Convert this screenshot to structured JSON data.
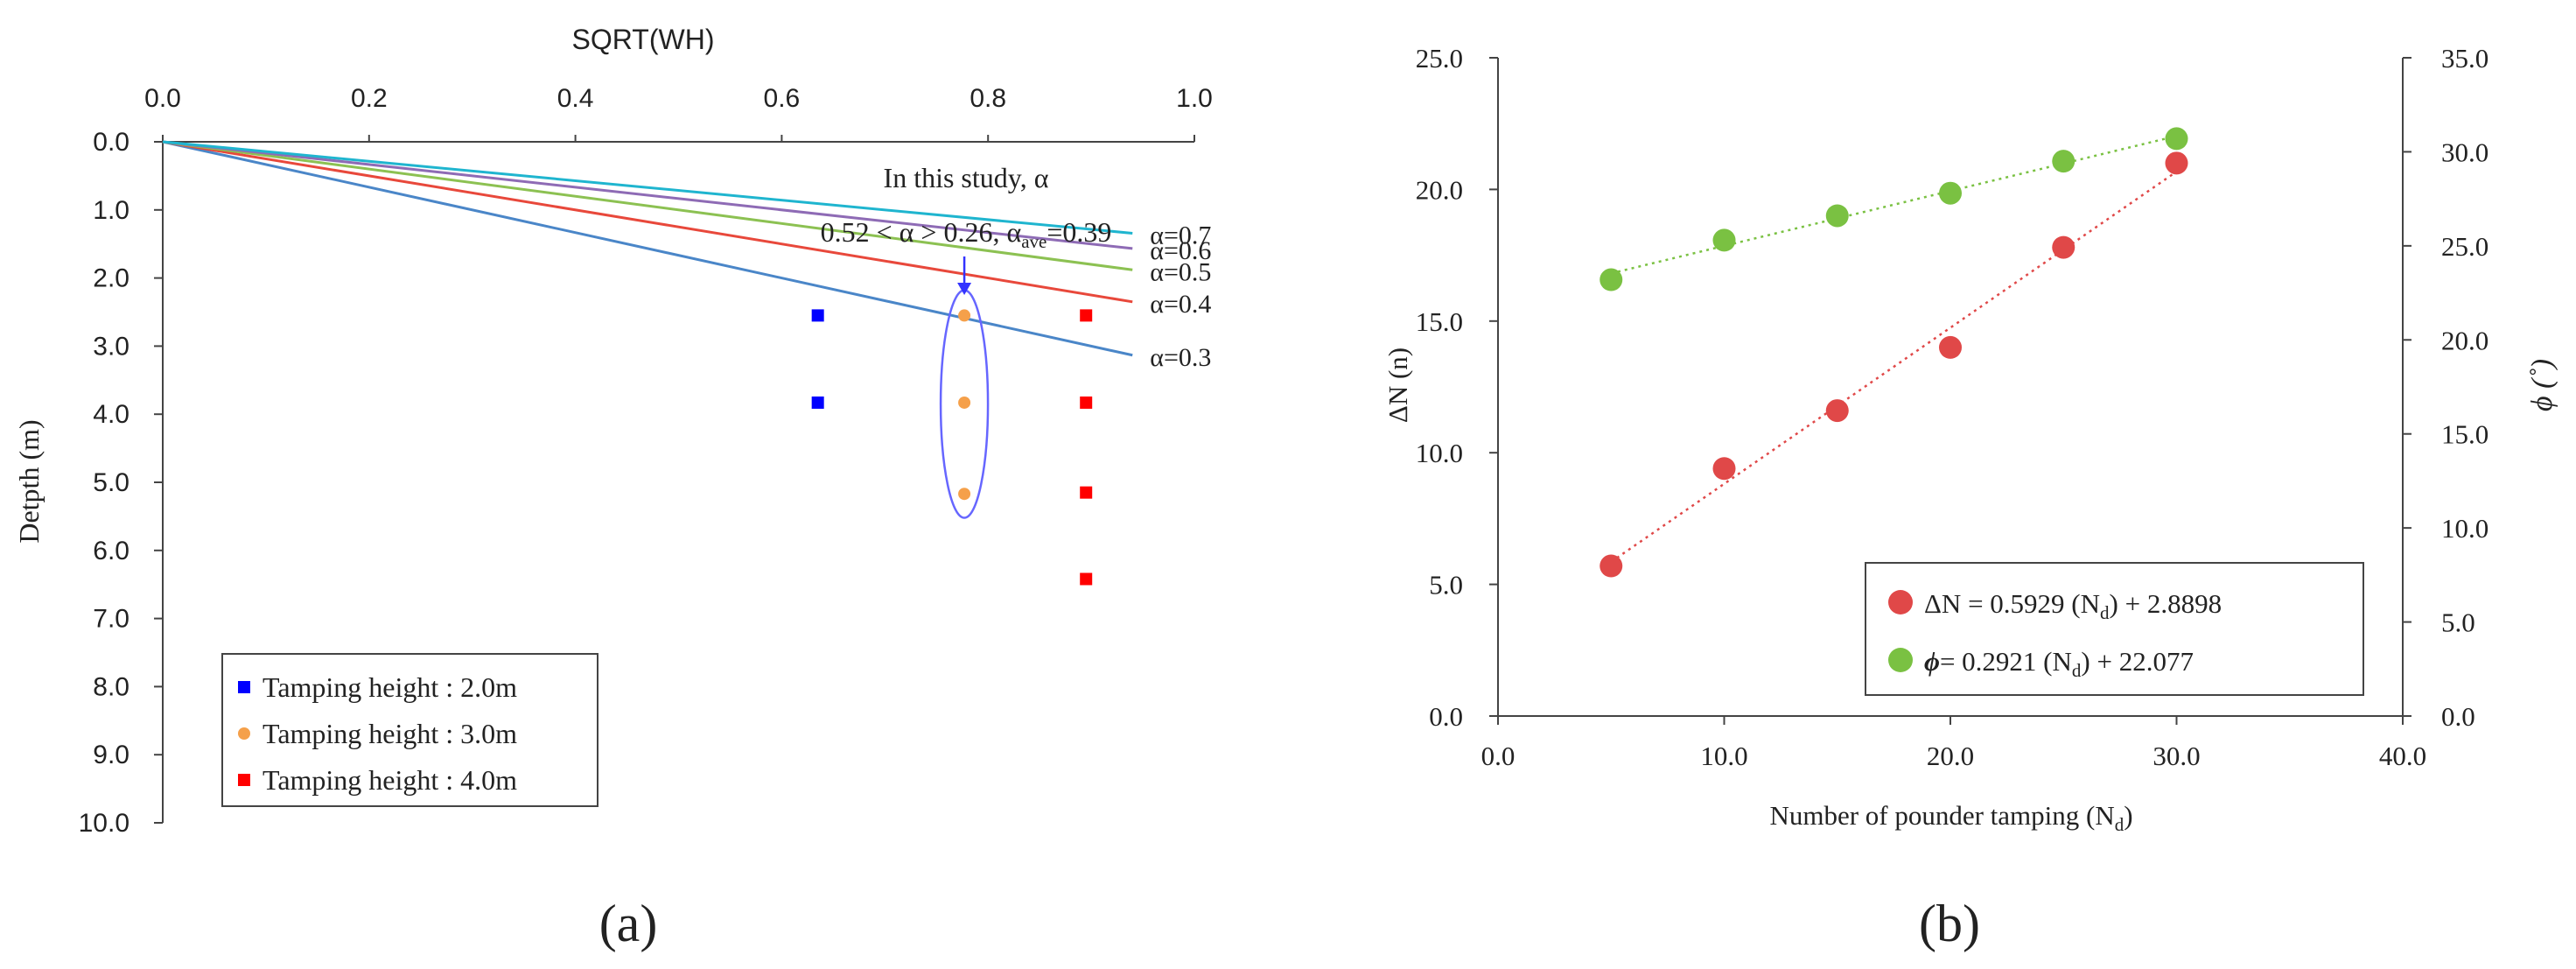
{
  "chart_data": [
    {
      "panel_label": "(a)",
      "type": "line",
      "x_axis": {
        "label": "SQRT(WH)",
        "position": "top",
        "range": [
          0.0,
          1.0
        ],
        "ticks": [
          "0.0",
          "0.2",
          "0.4",
          "0.6",
          "0.8",
          "1.0"
        ]
      },
      "y_axis": {
        "label": "Detpth (m)",
        "range": [
          0.0,
          10.0
        ],
        "inverted": true,
        "ticks": [
          "0.0",
          "1.0",
          "2.0",
          "3.0",
          "4.0",
          "5.0",
          "6.0",
          "7.0",
          "8.0",
          "9.0",
          "10.0"
        ]
      },
      "colors": {
        "blue": "#4a86c8",
        "red": "#e8483b",
        "green": "#8cc152",
        "purple": "#8e6bb5",
        "cyan": "#1fb5cf",
        "marker_blue": "#0000ff",
        "marker_orange": "#f5a04a",
        "marker_red": "#ff0000",
        "ellipse": "#6666ff",
        "arrow": "#3333ff"
      },
      "lines": [
        {
          "name": "α=0.3",
          "alpha": 0.3,
          "x_end": 0.94,
          "color": "#4a86c8"
        },
        {
          "name": "α=0.4",
          "alpha": 0.4,
          "x_end": 0.94,
          "color": "#e8483b"
        },
        {
          "name": "α=0.5",
          "alpha": 0.5,
          "x_end": 0.94,
          "color": "#8cc152"
        },
        {
          "name": "α=0.6",
          "alpha": 0.6,
          "x_end": 0.94,
          "color": "#8e6bb5"
        },
        {
          "name": "α=0.7",
          "alpha": 0.7,
          "x_end": 0.94,
          "color": "#1fb5cf"
        }
      ],
      "series": [
        {
          "name": "Tamping height : 2.0m",
          "marker": "square",
          "color": "#0000ff",
          "points": [
            [
              0.635,
              2.55
            ],
            [
              0.635,
              3.83
            ]
          ]
        },
        {
          "name": "Tamping height : 3.0m",
          "marker": "circle",
          "color": "#f5a04a",
          "points": [
            [
              0.777,
              2.55
            ],
            [
              0.777,
              3.83
            ],
            [
              0.777,
              5.17
            ]
          ]
        },
        {
          "name": "Tamping height : 4.0m",
          "marker": "square",
          "color": "#ff0000",
          "points": [
            [
              0.895,
              2.55
            ],
            [
              0.895,
              3.83
            ],
            [
              0.895,
              5.15
            ],
            [
              0.895,
              6.42
            ]
          ]
        }
      ],
      "annotation": {
        "line1": "In this study, α",
        "line2_prefix": "0.52 < α > 0.26, α",
        "line2_sub": "ave",
        "line2_suffix": "=0.39",
        "ellipse_center": [
          0.777,
          3.85
        ],
        "arrow_to": [
          0.777,
          2.25
        ]
      }
    },
    {
      "panel_label": "(b)",
      "type": "scatter",
      "x_axis": {
        "label_prefix": "Number of pounder tamping (N",
        "label_sub": "d",
        "label_suffix": ")",
        "range": [
          0.0,
          40.0
        ],
        "ticks": [
          "0.0",
          "10.0",
          "20.0",
          "30.0",
          "40.0"
        ]
      },
      "y_axis_left": {
        "label": "ΔN (n)",
        "range": [
          0.0,
          25.0
        ],
        "ticks": [
          "0.0",
          "5.0",
          "10.0",
          "15.0",
          "20.0",
          "25.0"
        ]
      },
      "y_axis_right": {
        "label": "ϕ (˚)",
        "range": [
          0.0,
          35.0
        ],
        "ticks": [
          "0.0",
          "5.0",
          "10.0",
          "15.0",
          "20.0",
          "25.0",
          "30.0",
          "35.0"
        ]
      },
      "series": [
        {
          "name": "ΔN",
          "axis": "left",
          "color": "#e04848",
          "x": [
            5,
            10,
            15,
            20,
            25,
            30
          ],
          "y": [
            5.7,
            9.4,
            11.6,
            14.0,
            17.8,
            21.0
          ],
          "trend": {
            "slope": 0.5929,
            "intercept": 2.8898
          },
          "legend_prefix": "ΔN = 0.5929 (N",
          "legend_sub": "d",
          "legend_suffix": ") + 2.8898"
        },
        {
          "name": "ϕ",
          "axis": "right",
          "color": "#7ac142",
          "x": [
            5,
            10,
            15,
            20,
            25,
            30
          ],
          "y": [
            23.2,
            25.3,
            26.6,
            27.8,
            29.5,
            30.7
          ],
          "trend": {
            "slope": 0.2921,
            "intercept": 22.077
          },
          "legend_prefix": "ϕ",
          "legend_mid": "= 0.2921 (N",
          "legend_sub": "d",
          "legend_suffix": ") + 22.077"
        }
      ]
    }
  ]
}
